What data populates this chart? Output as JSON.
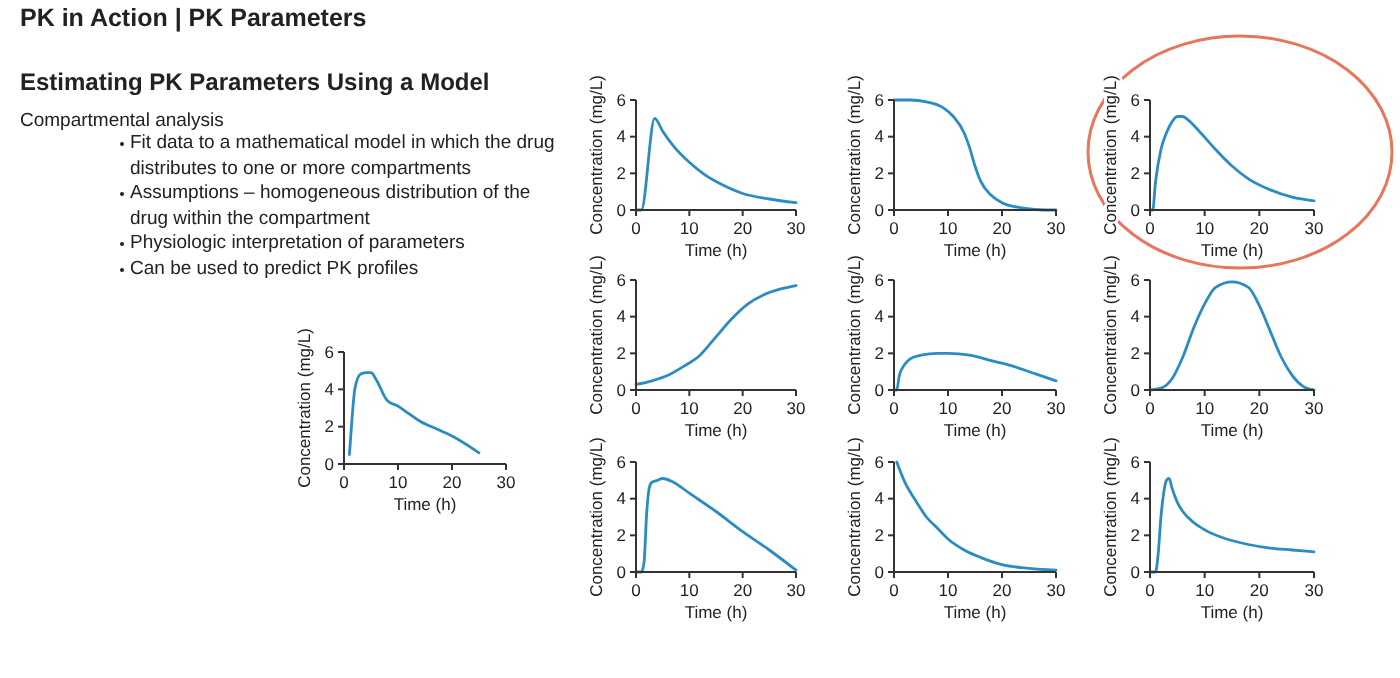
{
  "chart_data": [
    {
      "type": "other",
      "title": "PK in Action | PK Parameters",
      "subtitle": "Estimating PK Parameters Using a Model",
      "annotations": [
        "Compartmental analysis",
        "Fit data to a mathematical model in which the drug distributes to one or more compartments",
        "Assumptions – homogeneous distribution of the drug within the compartment",
        "Physiologic interpretation of parameters",
        "Can be used to predict PK profiles"
      ]
    },
    {
      "type": "line",
      "xlabel": "Time (h)",
      "ylabel": "Concentration (mg/L)",
      "xlim": [
        0,
        30
      ],
      "xticks": [
        0,
        10,
        20,
        30
      ],
      "ylim": [
        0,
        6
      ],
      "yticks": [
        0,
        2,
        4,
        6
      ],
      "grid": false,
      "series": [
        {
          "color": "#2b8cc4",
          "x": [
            1,
            1.5,
            2,
            3,
            4,
            5,
            6,
            8,
            10,
            12,
            14,
            17,
            20,
            25
          ],
          "values": [
            0.5,
            2.5,
            4,
            4.8,
            4.9,
            4.9,
            4.5,
            3.4,
            3.1,
            2.7,
            2.3,
            1.9,
            1.5,
            0.6
          ]
        }
      ]
    },
    {
      "type": "line",
      "xlabel": "Time (h)",
      "ylabel": "Concentration (mg/L)",
      "xlim": [
        0,
        30
      ],
      "xticks": [
        0,
        10,
        20,
        30
      ],
      "ylim": [
        0,
        6
      ],
      "yticks": [
        0,
        2,
        4,
        6
      ],
      "grid": false,
      "series": [
        {
          "color": "#2b8cc4",
          "x": [
            0,
            1,
            3.5,
            5,
            7,
            10,
            13,
            16,
            20,
            25,
            30
          ],
          "values": [
            0,
            0,
            5,
            4.3,
            3.5,
            2.6,
            1.9,
            1.4,
            0.9,
            0.6,
            0.4
          ]
        }
      ]
    },
    {
      "type": "line",
      "xlabel": "Time (h)",
      "ylabel": "Concentration (mg/L)",
      "xlim": [
        0,
        30
      ],
      "xticks": [
        0,
        10,
        20,
        30
      ],
      "ylim": [
        0,
        6
      ],
      "yticks": [
        0,
        2,
        4,
        6
      ],
      "grid": false,
      "series": [
        {
          "color": "#2b8cc4",
          "x": [
            0,
            3,
            6,
            9,
            11,
            13,
            14,
            15,
            16,
            18,
            20,
            24,
            28,
            30
          ],
          "values": [
            6,
            6,
            5.9,
            5.6,
            5.1,
            4.2,
            3.4,
            2.4,
            1.6,
            0.8,
            0.4,
            0.1,
            0,
            0
          ]
        }
      ]
    },
    {
      "type": "line",
      "xlabel": "Time (h)",
      "ylabel": "Concentration (mg/L)",
      "xlim": [
        0,
        30
      ],
      "xticks": [
        0,
        10,
        20,
        30
      ],
      "ylim": [
        0,
        6
      ],
      "yticks": [
        0,
        2,
        4,
        6
      ],
      "grid": false,
      "series": [
        {
          "color": "#2b8cc4",
          "x": [
            0,
            0.5,
            1,
            2,
            3,
            4,
            5,
            6,
            7,
            9,
            12,
            15,
            18,
            22,
            26,
            30
          ],
          "values": [
            0,
            0,
            1.5,
            3.3,
            4.2,
            4.8,
            5.1,
            5.1,
            4.9,
            4.3,
            3.3,
            2.4,
            1.7,
            1.1,
            0.7,
            0.5
          ]
        }
      ]
    },
    {
      "type": "line",
      "xlabel": "Time (h)",
      "ylabel": "Concentration (mg/L)",
      "xlim": [
        0,
        30
      ],
      "xticks": [
        0,
        10,
        20,
        30
      ],
      "ylim": [
        0,
        6
      ],
      "yticks": [
        0,
        2,
        4,
        6
      ],
      "grid": false,
      "series": [
        {
          "color": "#2b8cc4",
          "x": [
            0,
            3,
            6,
            9,
            12,
            15,
            18,
            21,
            24,
            27,
            30
          ],
          "values": [
            0.3,
            0.5,
            0.8,
            1.3,
            1.9,
            2.9,
            3.9,
            4.7,
            5.2,
            5.5,
            5.7
          ]
        }
      ]
    },
    {
      "type": "line",
      "xlabel": "Time (h)",
      "ylabel": "Concentration (mg/L)",
      "xlim": [
        0,
        30
      ],
      "xticks": [
        0,
        10,
        20,
        30
      ],
      "ylim": [
        0,
        6
      ],
      "yticks": [
        0,
        2,
        4,
        6
      ],
      "grid": false,
      "series": [
        {
          "color": "#2b8cc4",
          "x": [
            0,
            0.5,
            1,
            2,
            3,
            5,
            8,
            10,
            14,
            18,
            22,
            26,
            30
          ],
          "values": [
            0,
            0,
            0.8,
            1.4,
            1.7,
            1.9,
            2,
            2,
            1.9,
            1.6,
            1.3,
            0.9,
            0.5
          ]
        }
      ]
    },
    {
      "type": "line",
      "xlabel": "Time (h)",
      "ylabel": "Concentration (mg/L)",
      "xlim": [
        0,
        30
      ],
      "xticks": [
        0,
        10,
        20,
        30
      ],
      "ylim": [
        0,
        6
      ],
      "yticks": [
        0,
        2,
        4,
        6
      ],
      "grid": false,
      "series": [
        {
          "color": "#2b8cc4",
          "x": [
            0,
            2,
            4,
            6,
            8,
            10,
            12,
            15,
            18,
            20,
            22,
            24,
            26,
            28,
            30
          ],
          "values": [
            0,
            0.1,
            0.6,
            1.8,
            3.4,
            4.7,
            5.6,
            5.9,
            5.6,
            4.6,
            3.2,
            1.8,
            0.8,
            0.2,
            0
          ]
        }
      ]
    },
    {
      "type": "line",
      "xlabel": "Time (h)",
      "ylabel": "Concentration (mg/L)",
      "xlim": [
        0,
        30
      ],
      "xticks": [
        0,
        10,
        20,
        30
      ],
      "ylim": [
        0,
        6
      ],
      "yticks": [
        0,
        2,
        4,
        6
      ],
      "grid": false,
      "series": [
        {
          "color": "#2b8cc4",
          "x": [
            0,
            1,
            1.5,
            2,
            2.5,
            3,
            4,
            5,
            7,
            10,
            15,
            20,
            25,
            30
          ],
          "values": [
            0,
            0,
            0.5,
            3.2,
            4.6,
            4.9,
            5,
            5.1,
            4.9,
            4.3,
            3.3,
            2.2,
            1.2,
            0.1
          ]
        }
      ]
    },
    {
      "type": "line",
      "xlabel": "Time (h)",
      "ylabel": "Concentration (mg/L)",
      "xlim": [
        0,
        30
      ],
      "xticks": [
        0,
        10,
        20,
        30
      ],
      "ylim": [
        0,
        6
      ],
      "yticks": [
        0,
        2,
        4,
        6
      ],
      "grid": false,
      "series": [
        {
          "color": "#2b8cc4",
          "x": [
            0.5,
            2,
            4,
            6,
            8,
            10,
            13,
            16,
            20,
            25,
            30
          ],
          "values": [
            6,
            4.9,
            3.9,
            3,
            2.4,
            1.8,
            1.2,
            0.8,
            0.4,
            0.2,
            0.1
          ]
        }
      ]
    },
    {
      "type": "line",
      "xlabel": "Time (h)",
      "ylabel": "Concentration (mg/L)",
      "xlim": [
        0,
        30
      ],
      "xticks": [
        0,
        10,
        20,
        30
      ],
      "ylim": [
        0,
        6
      ],
      "yticks": [
        0,
        2,
        4,
        6
      ],
      "grid": false,
      "series": [
        {
          "color": "#2b8cc4",
          "x": [
            0,
            1,
            1.5,
            2,
            2.5,
            3,
            3.5,
            4,
            5,
            6,
            8,
            10,
            14,
            18,
            22,
            26,
            30
          ],
          "values": [
            0,
            0,
            1,
            3,
            4.3,
            5,
            5.1,
            4.6,
            3.8,
            3.3,
            2.7,
            2.3,
            1.8,
            1.5,
            1.3,
            1.2,
            1.1
          ]
        }
      ]
    }
  ]
}
